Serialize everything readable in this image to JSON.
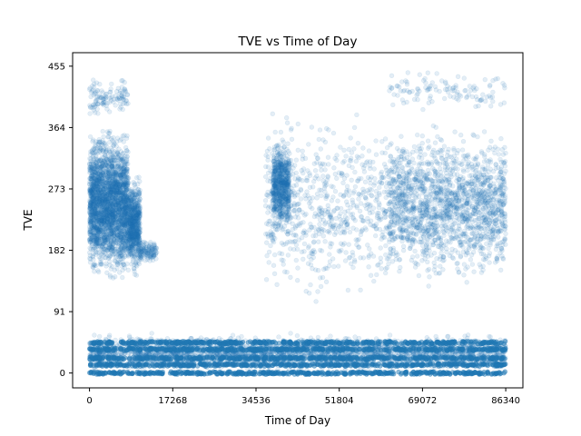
{
  "chart_data": {
    "type": "scatter",
    "title": "TVE vs Time of Day",
    "xlabel": "Time of Day",
    "ylabel": "TVE",
    "xlim": [
      -3500,
      89900
    ],
    "ylim": [
      -22,
      475
    ],
    "xticks": [
      0,
      17268,
      34536,
      51804,
      69072,
      86340
    ],
    "yticks": [
      0,
      91,
      182,
      273,
      364,
      455
    ],
    "grid": false,
    "point_color": "#1f77b4",
    "point_alpha": 0.12,
    "series": [
      {
        "clusters": [
          {
            "x": [
              0,
              8000
            ],
            "y": [
              125,
              375
            ],
            "density": "very high"
          },
          {
            "x": [
              8000,
              10500
            ],
            "y": [
              140,
              300
            ],
            "density": "medium"
          },
          {
            "x": [
              10500,
              14000
            ],
            "y": [
              160,
              200
            ],
            "density": "low"
          },
          {
            "x": [
              0,
              8000
            ],
            "y": [
              375,
              440
            ],
            "density": "low"
          },
          {
            "x": [
              38000,
              41500
            ],
            "y": [
              200,
              360
            ],
            "density": "medium"
          },
          {
            "x": [
              36500,
              62000
            ],
            "y": [
              90,
              400
            ],
            "density": "medium"
          },
          {
            "x": [
              62000,
              86340
            ],
            "y": [
              120,
              380
            ],
            "density": "high"
          },
          {
            "x": [
              62000,
              86340
            ],
            "y": [
              380,
              455
            ],
            "density": "low"
          },
          {
            "x": [
              0,
              86340
            ],
            "y": [
              0,
              60
            ],
            "density": "very high"
          }
        ],
        "bands": [
          0,
          12,
          22,
          35,
          45
        ]
      }
    ]
  }
}
